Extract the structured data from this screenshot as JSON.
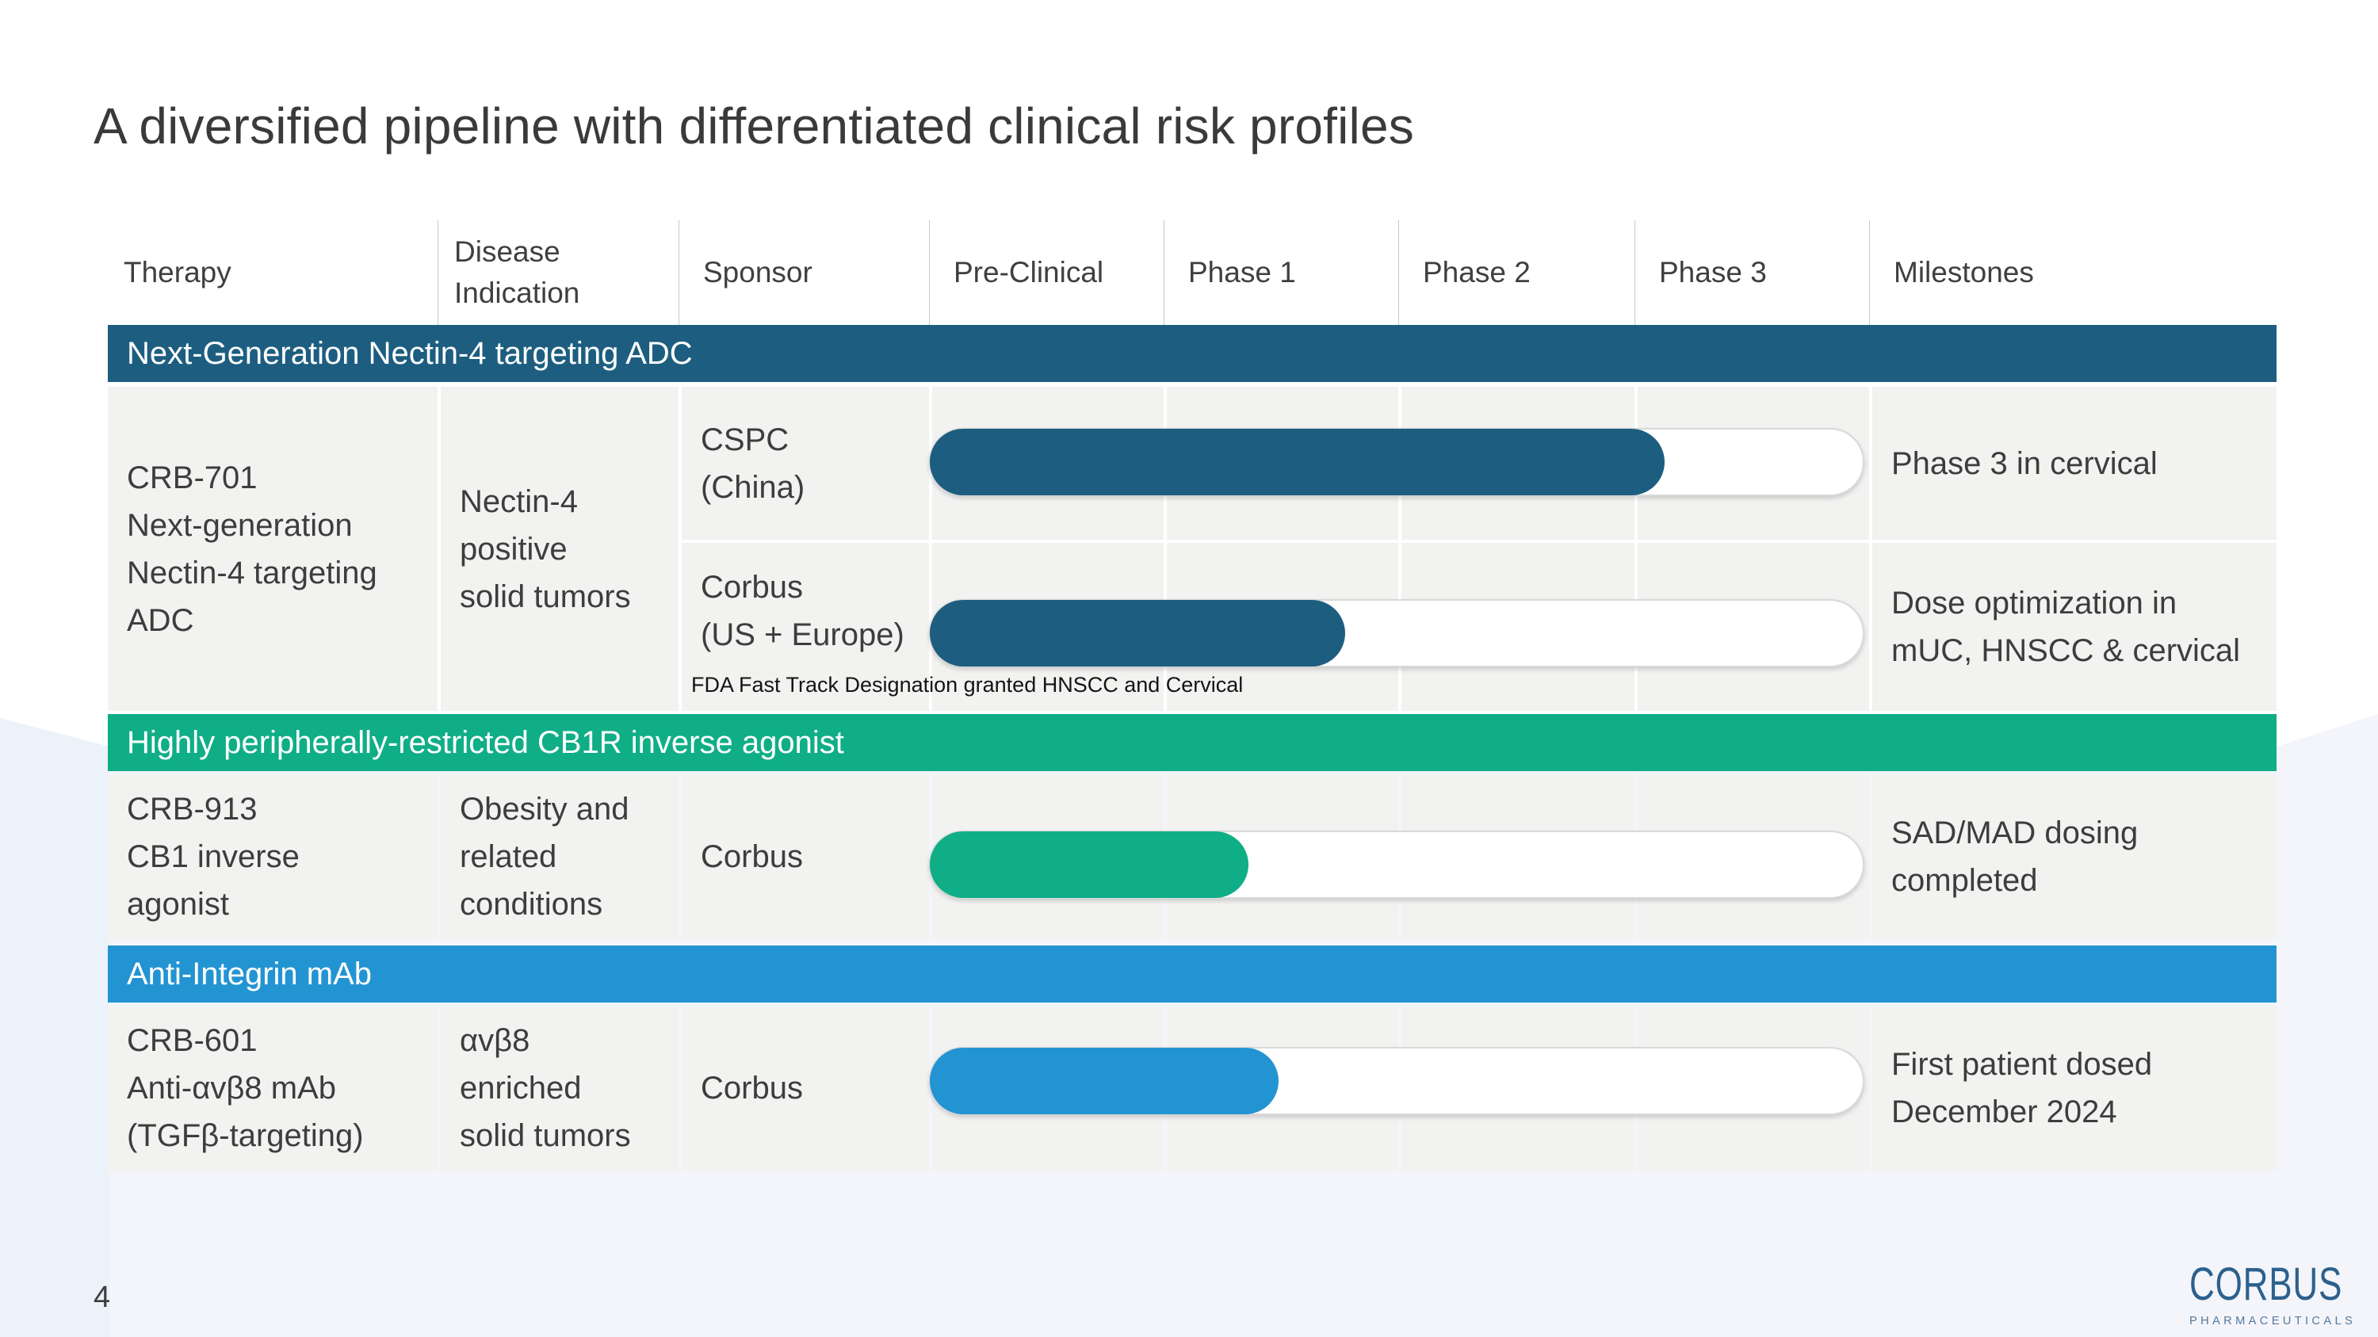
{
  "title": "A diversified pipeline with differentiated clinical risk profiles",
  "page_number": "4",
  "colors": {
    "teal": "#1d5e80",
    "green": "#0fae87",
    "blue": "#2394d2",
    "row_bg": "#f2f2f1",
    "band_text": "#ffffff",
    "body_text": "#3d3d3d"
  },
  "table": {
    "headers": [
      "Therapy",
      "Disease Indication",
      "Sponsor",
      "Pre-Clinical",
      "Phase 1",
      "Phase 2",
      "Phase 3",
      "Milestones"
    ]
  },
  "pipeline": [
    {
      "section": {
        "label": "Next-Generation Nectin-4 targeting ADC",
        "color": "#1d5e80"
      },
      "therapy": "CRB-701\nNext-generation\nNectin-4 targeting\nADC",
      "indication": "Nectin-4\npositive\nsolid tumors",
      "programs": [
        {
          "sponsor": "CSPC\n(China)",
          "progress_pct": 78.8,
          "bar_color": "#1d5e80",
          "phase_reached": "Phase 3",
          "milestone": "Phase 3 in cervical"
        },
        {
          "sponsor": "Corbus\n(US + Europe)",
          "progress_pct": 44.6,
          "bar_color": "#1d5e80",
          "phase_reached": "Phase 1",
          "milestone": "Dose optimization in\nmUC, HNSCC & cervical",
          "footnote": "FDA Fast Track Designation granted HNSCC and Cervical"
        }
      ]
    },
    {
      "section": {
        "label": "Highly peripherally-restricted CB1R inverse agonist",
        "color": "#0fae87"
      },
      "therapy": "CRB-913\nCB1 inverse\nagonist",
      "indication": "Obesity and\nrelated\nconditions",
      "programs": [
        {
          "sponsor": "Corbus",
          "progress_pct": 34.2,
          "bar_color": "#0fae87",
          "phase_reached": "Phase 1",
          "milestone": "SAD/MAD dosing\ncompleted"
        }
      ]
    },
    {
      "section": {
        "label": "Anti-Integrin mAb",
        "color": "#2394d2"
      },
      "therapy": "CRB-601\nAnti-αvβ8 mAb\n(TGFβ-targeting)",
      "indication": "αvβ8\nenriched\nsolid tumors",
      "programs": [
        {
          "sponsor": "Corbus",
          "progress_pct": 37.4,
          "bar_color": "#2394d2",
          "phase_reached": "Phase 1",
          "milestone": "First patient dosed\nDecember 2024"
        }
      ]
    }
  ],
  "logo": {
    "name": "CORBUS",
    "subtext": "PHARMACEUTICALS"
  }
}
